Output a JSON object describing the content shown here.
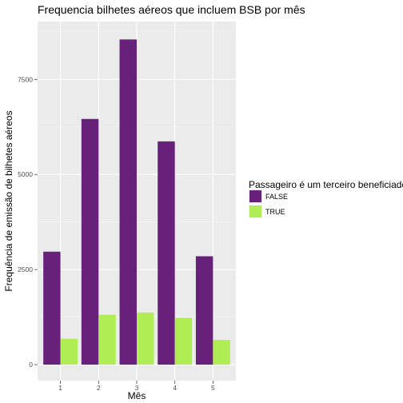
{
  "chart_data": {
    "type": "bar",
    "title": "Frequencia bilhetes aéreos que incluem BSB por mês",
    "xlabel": "Mês",
    "ylabel": "Frequência de emissão de bilhetes aéreos",
    "categories": [
      "1",
      "2",
      "3",
      "4",
      "5"
    ],
    "yticks": [
      0,
      2500,
      5000,
      7500
    ],
    "ylim": [
      -420,
      9020
    ],
    "grid": true,
    "legend": {
      "title": "Passageiro é um terceiro beneficiado",
      "position": "right"
    },
    "series": [
      {
        "name": "FALSE",
        "color": "#68217a",
        "values": [
          2970,
          6460,
          8550,
          5870,
          2850
        ]
      },
      {
        "name": "TRUE",
        "color": "#b0ed55",
        "values": [
          680,
          1310,
          1370,
          1230,
          650
        ]
      }
    ],
    "panel_color": "#ebebeb"
  }
}
